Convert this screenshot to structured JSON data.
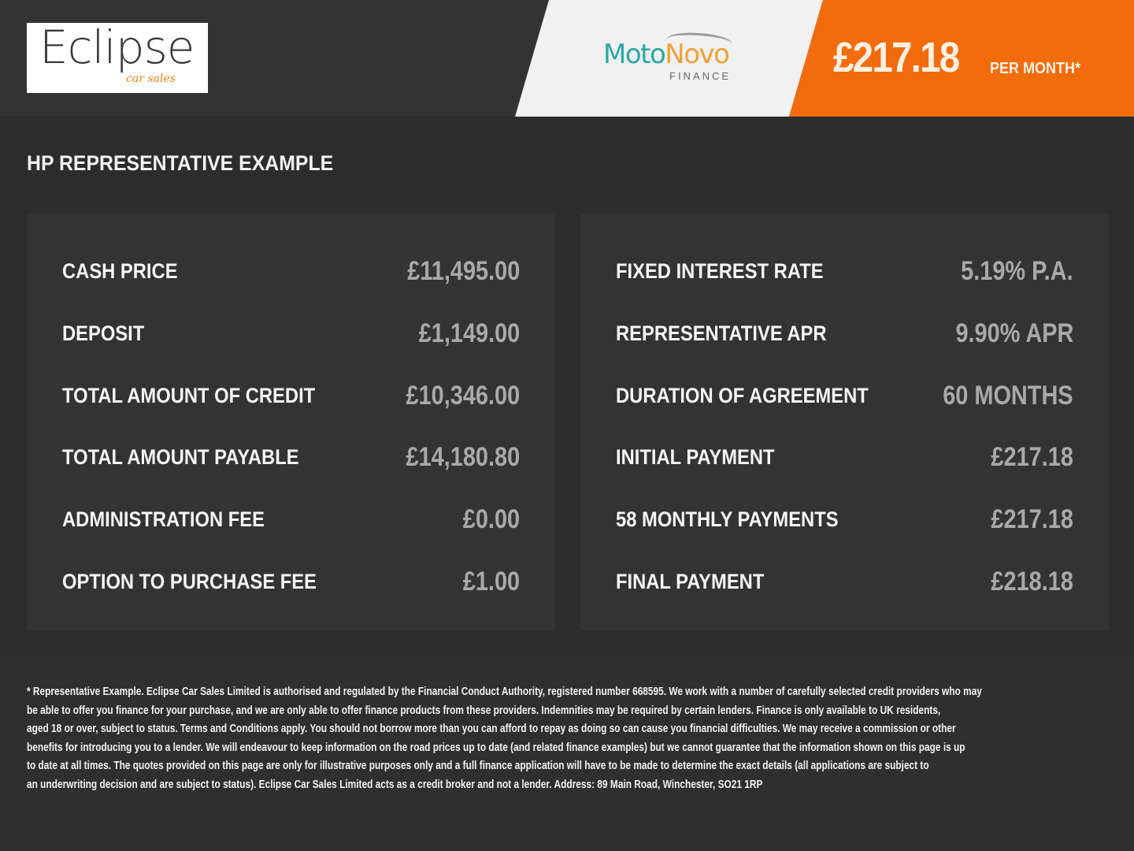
{
  "header": {
    "dealer_logo": {
      "main": "Eclipse",
      "sub": "car sales"
    },
    "finance_logo": {
      "main_a": "Moto",
      "main_b": "Novo",
      "sub": "FINANCE"
    },
    "monthly_price": "£217.18",
    "per_month_label": "PER MONTH*",
    "colors": {
      "orange": "#f26c0d",
      "teal": "#2aa7a6",
      "gold": "#eea13a"
    }
  },
  "section_title": "HP REPRESENTATIVE EXAMPLE",
  "left_panel": [
    {
      "label": "CASH PRICE",
      "value": "£11,495.00"
    },
    {
      "label": "DEPOSIT",
      "value": "£1,149.00"
    },
    {
      "label": "TOTAL AMOUNT OF CREDIT",
      "value": "£10,346.00"
    },
    {
      "label": "TOTAL AMOUNT PAYABLE",
      "value": "£14,180.80"
    },
    {
      "label": "ADMINISTRATION FEE",
      "value": "£0.00"
    },
    {
      "label": "OPTION TO PURCHASE FEE",
      "value": "£1.00"
    }
  ],
  "right_panel": [
    {
      "label": "FIXED INTEREST RATE",
      "value": "5.19% P.A."
    },
    {
      "label": "REPRESENTATIVE APR",
      "value": "9.90% APR"
    },
    {
      "label": "DURATION OF AGREEMENT",
      "value": "60 MONTHS"
    },
    {
      "label": "INITIAL PAYMENT",
      "value": "£217.18"
    },
    {
      "label": "58 MONTHLY PAYMENTS",
      "value": "£217.18"
    },
    {
      "label": "FINAL PAYMENT",
      "value": "£218.18"
    }
  ],
  "disclaimer_lines": [
    "* Representative Example. Eclipse Car Sales Limited is authorised and regulated by the Financial Conduct Authority, registered number 668595. We work with a number of carefully selected credit providers who may",
    "be able to offer you finance for your purchase, and we are only able to offer finance products from these providers. Indemnities may be required by certain lenders. Finance is only available to UK residents,",
    "aged 18 or over, subject to status. Terms and Conditions apply. You should not borrow more than you can afford to repay as doing so can cause you financial difficulties. We may receive a commission or other",
    "benefits for introducing you to a lender. We will endeavour to keep information on the road prices up to date (and related finance examples) but we cannot guarantee that the information shown on this page is up",
    "to date at all times. The quotes provided on this page are only for illustrative purposes only and a full finance application will have to be made to determine the exact details (all applications are subject to",
    "an underwriting decision and are subject to status). Eclipse Car Sales Limited acts as a credit broker and not a lender. Address: 89 Main Road, Winchester, SO21 1RP"
  ]
}
